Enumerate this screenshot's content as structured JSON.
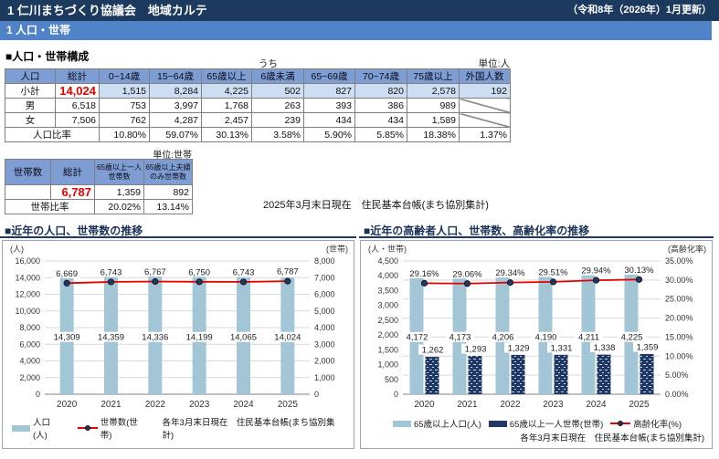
{
  "header": {
    "title": "1 仁川まちづくり協議会　地域カルテ",
    "update_note": "（令和8年（2026年）1月更新）"
  },
  "subheader": {
    "title": "1 人口・世帯"
  },
  "population_section": {
    "title": "■人口・世帯構成",
    "uchi_label": "うち",
    "unit_label": "単位:人",
    "table": {
      "headers": [
        "人口",
        "総計",
        "0~14歳",
        "15~64歳",
        "65歳以上",
        "6歳未満",
        "65~69歳",
        "70~74歳",
        "75歳以上",
        "外国人数"
      ],
      "rows": [
        {
          "label": "小計",
          "values": [
            "14,024",
            "1,515",
            "8,284",
            "4,225",
            "502",
            "827",
            "820",
            "2,578",
            "192"
          ]
        },
        {
          "label": "男",
          "values": [
            "6,518",
            "753",
            "3,997",
            "1,768",
            "263",
            "393",
            "386",
            "989",
            null
          ]
        },
        {
          "label": "女",
          "values": [
            "7,506",
            "762",
            "4,287",
            "2,457",
            "239",
            "434",
            "434",
            "1,589",
            null
          ]
        }
      ],
      "ratio_row": {
        "label": "人口比率",
        "values": [
          "10.80%",
          "59.07%",
          "30.13%",
          "3.58%",
          "5.90%",
          "5.85%",
          "18.38%",
          "1.37%"
        ]
      }
    }
  },
  "household_section": {
    "unit_label": "単位:世帯",
    "table": {
      "headers": [
        "世帯数",
        "総計",
        "65歳以上一人世帯数",
        "65歳以上夫婦のみ世帯数"
      ],
      "total_row": {
        "values": [
          "6,787",
          "1,359",
          "892"
        ]
      },
      "ratio_row": {
        "label": "世帯比率",
        "values": [
          "20.02%",
          "13.14%"
        ]
      }
    },
    "source_note": "2025年3月末日現在　住民基本台帳(まち協別集計)"
  },
  "chart_data": [
    {
      "type": "bar",
      "title": "■近年の人口、世帯数の推移",
      "categories": [
        "2020",
        "2021",
        "2022",
        "2023",
        "2024",
        "2025"
      ],
      "series": [
        {
          "name": "人口(人)",
          "kind": "bar",
          "axis": "left",
          "color": "#a2c6d6",
          "values": [
            14309,
            14359,
            14336,
            14199,
            14065,
            14024
          ],
          "labels": [
            "14,309",
            "14,359",
            "14,336",
            "14,199",
            "14,065",
            "14,024"
          ]
        },
        {
          "name": "世帯数(世帯)",
          "kind": "line",
          "axis": "right",
          "color": "#e60000",
          "marker_color": "#1f3864",
          "values": [
            6669,
            6743,
            6767,
            6750,
            6743,
            6787
          ],
          "labels": [
            "6,669",
            "6,743",
            "6,767",
            "6,750",
            "6,743",
            "6,787"
          ]
        }
      ],
      "left_axis": {
        "title": "(人)",
        "min": 0,
        "max": 16000,
        "step": 2000,
        "tick_labels": [
          "0",
          "2,000",
          "4,000",
          "6,000",
          "8,000",
          "10,000",
          "12,000",
          "14,000",
          "16,000"
        ]
      },
      "right_axis": {
        "title": "(世帯)",
        "min": 0,
        "max": 8000,
        "step": 1000,
        "tick_labels": [
          "0",
          "1,000",
          "2,000",
          "3,000",
          "4,000",
          "5,000",
          "6,000",
          "7,000",
          "8,000"
        ]
      },
      "grid": "left",
      "source_note": "各年3月末日現在　住民基本台帳(まち協別集計)"
    },
    {
      "type": "bar",
      "title": "■近年の高齢者人口、世帯数、高齢化率の推移",
      "categories": [
        "2020",
        "2021",
        "2022",
        "2023",
        "2024",
        "2025"
      ],
      "series": [
        {
          "name": "65歳以上人口(人)",
          "kind": "bar",
          "axis": "left",
          "color": "#a2c6d6",
          "values": [
            4172,
            4173,
            4206,
            4190,
            4211,
            4225
          ],
          "labels": [
            "4,172",
            "4,173",
            "4,206",
            "4,190",
            "4,211",
            "4,225"
          ]
        },
        {
          "name": "65歳以上一人世帯(世帯)",
          "kind": "bar",
          "axis": "left",
          "color": "#1f3864",
          "pattern": true,
          "values": [
            1262,
            1293,
            1329,
            1331,
            1338,
            1359
          ],
          "labels": [
            "1,262",
            "1,293",
            "1,329",
            "1,331",
            "1,338",
            "1,359"
          ]
        },
        {
          "name": "高齢化率(%)",
          "kind": "line",
          "axis": "right",
          "color": "#e60000",
          "marker_color": "#1f3864",
          "values": [
            29.16,
            29.06,
            29.34,
            29.51,
            29.94,
            30.13
          ],
          "labels": [
            "29.16%",
            "29.06%",
            "29.34%",
            "29.51%",
            "29.94%",
            "30.13%"
          ]
        }
      ],
      "left_axis": {
        "title": "(人・世帯)",
        "min": 0,
        "max": 4500,
        "step": 500,
        "tick_labels": [
          "0",
          "500",
          "1,000",
          "1,500",
          "2,000",
          "2,500",
          "3,000",
          "3,500",
          "4,000",
          "4,500"
        ]
      },
      "right_axis": {
        "title": "(高齢化率)",
        "min": 0,
        "max": 35,
        "step": 5,
        "tick_labels": [
          "0.00%",
          "5.00%",
          "10.00%",
          "15.00%",
          "20.00%",
          "25.00%",
          "30.00%",
          "35.00%"
        ]
      },
      "grid": "right",
      "source_note": "各年3月末日現在　住民基本台帳(まち協別集計)"
    }
  ]
}
